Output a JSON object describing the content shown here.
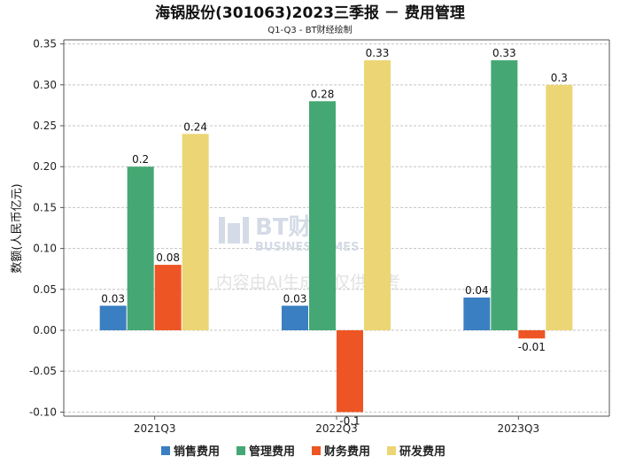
{
  "chart_data": {
    "type": "bar",
    "title": "海锅股份(301063)2023三季报 － 费用管理",
    "subtitle": "Q1-Q3 - BT财经绘制",
    "ylabel": "数额(人民币亿元)",
    "xlabel": "",
    "categories": [
      "2021Q3",
      "2022Q3",
      "2023Q3"
    ],
    "ylim": [
      -0.1,
      0.35
    ],
    "yticks": [
      -0.1,
      -0.05,
      0.0,
      0.05,
      0.1,
      0.15,
      0.2,
      0.25,
      0.3,
      0.35
    ],
    "ytick_labels": [
      "-0.10",
      "-0.05",
      "0.00",
      "0.05",
      "0.10",
      "0.15",
      "0.20",
      "0.25",
      "0.30",
      "0.35"
    ],
    "grid": true,
    "legend_position": "bottom",
    "series": [
      {
        "name": "销售费用",
        "color": "#3a7fc1",
        "values": [
          0.03,
          0.03,
          0.04
        ],
        "labels": [
          "0.03",
          "0.03",
          "0.04"
        ]
      },
      {
        "name": "管理费用",
        "color": "#45a874",
        "values": [
          0.2,
          0.28,
          0.33
        ],
        "labels": [
          "0.2",
          "0.28",
          "0.33"
        ]
      },
      {
        "name": "财务费用",
        "color": "#ee5524",
        "values": [
          0.08,
          -0.1,
          -0.01
        ],
        "labels": [
          "0.08",
          "-0.1",
          "-0.01"
        ]
      },
      {
        "name": "研发费用",
        "color": "#ecd574",
        "values": [
          0.24,
          0.33,
          0.3
        ],
        "labels": [
          "0.24",
          "0.33",
          "0.3"
        ]
      }
    ]
  },
  "watermark": {
    "brand": "BT财经",
    "brand_en": "BUSINESSTIMES",
    "notice": "内容由AI生成，仅供参考"
  }
}
